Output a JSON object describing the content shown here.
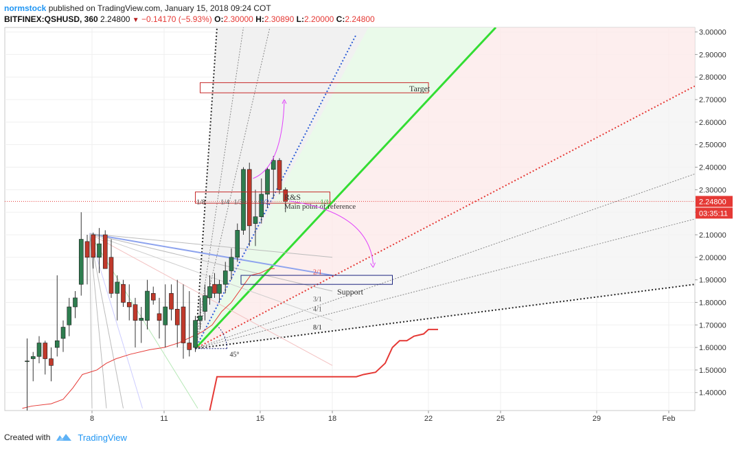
{
  "header": {
    "author": "normstock",
    "published_text": "published on TradingView.com, January 15, 2018 09:24 COT",
    "symbol": "BITFINEX:QSHUSD, 360",
    "last": "2.24800",
    "change": "−0.14170 (−5.93%)",
    "o_label": "O:",
    "o": "2.30000",
    "h_label": "H:",
    "h": "2.30890",
    "l_label": "L:",
    "l": "2.20000",
    "c_label": "C:",
    "c": "2.24800"
  },
  "footer": {
    "created_with": "Created with",
    "brand": "TradingView"
  },
  "chart_data": {
    "type": "candlestick",
    "title": "",
    "y_ticks": [
      "1.40000",
      "1.50000",
      "1.60000",
      "1.70000",
      "1.80000",
      "1.90000",
      "2.00000",
      "2.10000",
      "2.20000",
      "2.30000",
      "2.40000",
      "2.50000",
      "2.60000",
      "2.70000",
      "2.80000",
      "2.90000",
      "3.00000"
    ],
    "ylim": [
      1.32,
      3.02
    ],
    "x_ticks": [
      {
        "label": "8",
        "day": 8
      },
      {
        "label": "11",
        "day": 11
      },
      {
        "label": "15",
        "day": 15
      },
      {
        "label": "18",
        "day": 18
      },
      {
        "label": "22",
        "day": 22
      },
      {
        "label": "25",
        "day": 25
      },
      {
        "label": "29",
        "day": 29
      },
      {
        "label": "Feb",
        "day": 32
      }
    ],
    "price_badge": "2.24800",
    "timer_badge": "03:35:11",
    "colors": {
      "up": "#2e7d4f",
      "down": "#c0392b",
      "accent_blue": "#2196f3"
    },
    "candles": [
      [
        5.3,
        1.54,
        1.64,
        1.3,
        1.54
      ],
      [
        5.55,
        1.55,
        1.58,
        1.45,
        1.56
      ],
      [
        5.8,
        1.56,
        1.65,
        1.53,
        1.62
      ],
      [
        6.05,
        1.62,
        1.63,
        1.48,
        1.55
      ],
      [
        6.3,
        1.55,
        1.6,
        1.45,
        1.52
      ],
      [
        6.55,
        1.6,
        1.92,
        1.56,
        1.63
      ],
      [
        6.8,
        1.64,
        1.72,
        1.58,
        1.69
      ],
      [
        7.05,
        1.7,
        1.82,
        1.65,
        1.78
      ],
      [
        7.3,
        1.78,
        1.85,
        1.73,
        1.82
      ],
      [
        7.55,
        1.88,
        2.2,
        1.83,
        2.08
      ],
      [
        7.8,
        2.07,
        2.1,
        1.88,
        2.0
      ],
      [
        8.05,
        2.1,
        2.11,
        1.95,
        2.0
      ],
      [
        8.3,
        2.0,
        2.13,
        1.93,
        2.06
      ],
      [
        8.55,
        2.1,
        2.12,
        1.95,
        1.95
      ],
      [
        8.8,
        2.0,
        2.08,
        1.82,
        1.84
      ],
      [
        9.05,
        1.84,
        1.92,
        1.72,
        1.89
      ],
      [
        9.3,
        1.88,
        1.9,
        1.78,
        1.8
      ],
      [
        9.55,
        1.8,
        1.88,
        1.72,
        1.78
      ],
      [
        9.8,
        1.79,
        1.82,
        1.6,
        1.72
      ],
      [
        10.05,
        1.72,
        1.78,
        1.62,
        1.73
      ],
      [
        10.3,
        1.72,
        1.9,
        1.68,
        1.85
      ],
      [
        10.55,
        1.84,
        1.87,
        1.79,
        1.81
      ],
      [
        10.8,
        1.75,
        1.82,
        1.64,
        1.72
      ],
      [
        11.05,
        1.7,
        1.88,
        1.6,
        1.78
      ],
      [
        11.3,
        1.84,
        1.88,
        1.72,
        1.77
      ],
      [
        11.55,
        1.77,
        1.9,
        1.6,
        1.7
      ],
      [
        11.8,
        1.78,
        1.88,
        1.55,
        1.62
      ],
      [
        12.05,
        1.62,
        1.85,
        1.56,
        1.59
      ],
      [
        12.3,
        1.6,
        1.74,
        1.58,
        1.72
      ],
      [
        12.5,
        1.72,
        1.82,
        1.68,
        1.74
      ],
      [
        12.7,
        1.76,
        1.88,
        1.72,
        1.83
      ],
      [
        12.9,
        1.82,
        1.92,
        1.79,
        1.87
      ],
      [
        13.1,
        1.88,
        1.93,
        1.82,
        1.84
      ],
      [
        13.3,
        1.84,
        1.9,
        1.8,
        1.88
      ],
      [
        13.55,
        1.88,
        1.98,
        1.84,
        1.94
      ],
      [
        13.8,
        1.94,
        2.04,
        1.9,
        2.0
      ],
      [
        14.05,
        2.0,
        2.15,
        1.98,
        2.12
      ],
      [
        14.3,
        2.12,
        2.4,
        2.1,
        2.39
      ],
      [
        14.55,
        2.39,
        2.42,
        2.05,
        2.14
      ],
      [
        14.8,
        2.15,
        2.3,
        2.05,
        2.18
      ],
      [
        15.05,
        2.18,
        2.35,
        2.15,
        2.28
      ],
      [
        15.3,
        2.28,
        2.4,
        2.22,
        2.39
      ],
      [
        15.55,
        2.39,
        2.45,
        2.26,
        2.43
      ],
      [
        15.8,
        2.43,
        2.44,
        2.28,
        2.3
      ],
      [
        16.05,
        2.3,
        2.31,
        2.2,
        2.248
      ]
    ],
    "annotations": [
      {
        "label": "Target"
      },
      {
        "label": "R&S"
      },
      {
        "label": "Main point of reference"
      },
      {
        "label": "Support"
      },
      {
        "label": "45°"
      },
      {
        "label": "1/8"
      },
      {
        "label": "1/4"
      },
      {
        "label": "1/3"
      },
      {
        "label": "1/2"
      },
      {
        "label": "1/1"
      },
      {
        "label": "2/1"
      },
      {
        "label": "3/1"
      },
      {
        "label": "4/1"
      },
      {
        "label": "8/1"
      }
    ]
  }
}
